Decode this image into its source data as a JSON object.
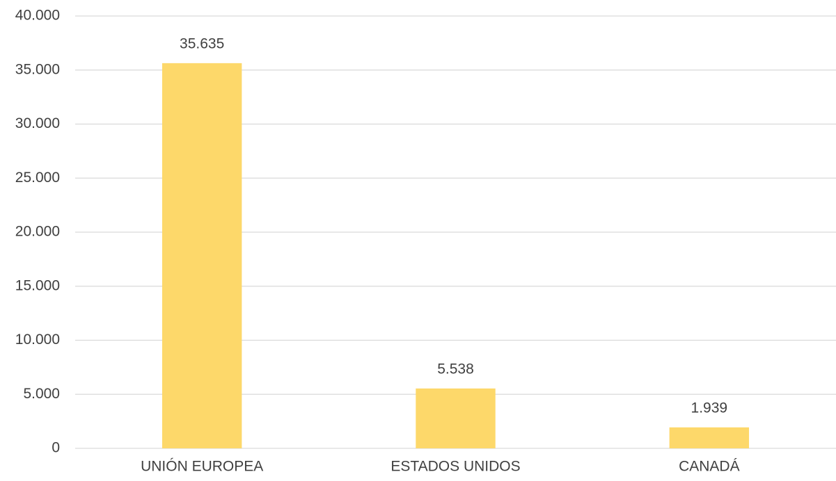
{
  "chart_data": {
    "type": "bar",
    "categories": [
      "UNIÓN EUROPEA",
      "ESTADOS UNIDOS",
      "CANADÁ"
    ],
    "values": [
      35635,
      5538,
      1939
    ],
    "value_labels": [
      "35.635",
      "5.538",
      "1.939"
    ],
    "color": "#fdd86a",
    "ylim": [
      0,
      40000
    ],
    "yticks": [
      0,
      {
        "value": 5000,
        "label": "5.000"
      },
      {
        "value": 10000,
        "label": "10.000"
      },
      {
        "value": 15000,
        "label": "15.000"
      },
      {
        "value": 20000,
        "label": "20.000"
      },
      {
        "value": 25000,
        "label": "25.000"
      },
      {
        "value": 30000,
        "label": "30.000"
      },
      {
        "value": 35000,
        "label": "35.000"
      },
      {
        "value": 40000,
        "label": "40.000"
      }
    ],
    "grid": true
  }
}
